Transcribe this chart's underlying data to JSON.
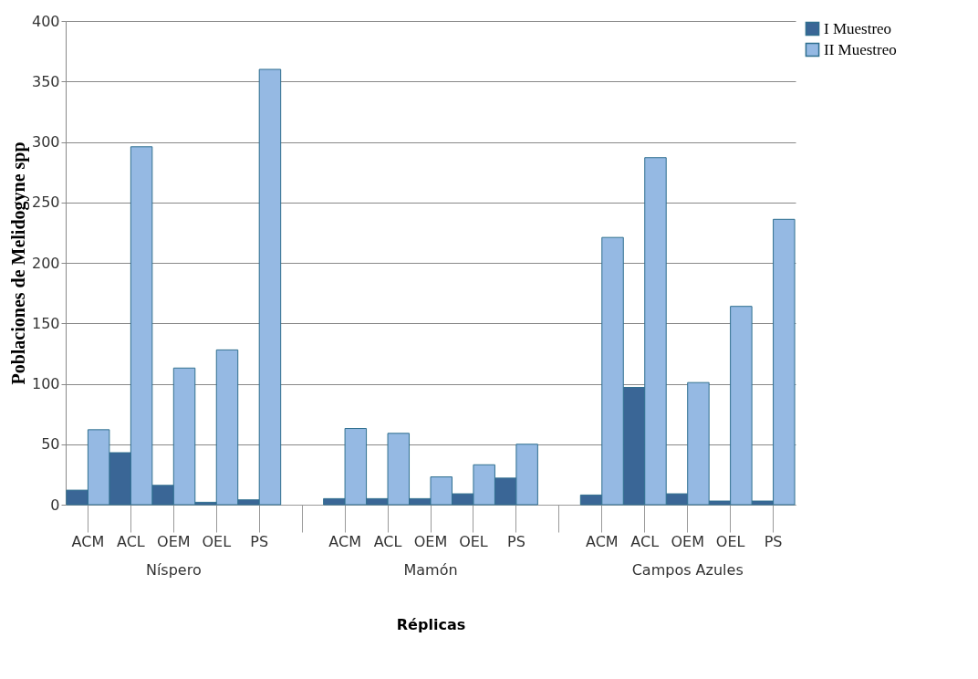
{
  "chart_data": {
    "type": "bar",
    "categories": [
      "ACM",
      "ACL",
      "OEM",
      "OEL",
      "PS",
      null,
      "ACM",
      "ACL",
      "OEM",
      "OEL",
      "PS",
      null,
      "ACM",
      "ACL",
      "OEM",
      "OEL",
      "PS"
    ],
    "xlabel": "Réplicas",
    "ylabel": "Poblaciones de Melidogyne  spp",
    "ylim": [
      0,
      400
    ],
    "yticks": [
      0,
      50,
      100,
      150,
      200,
      250,
      300,
      350,
      400
    ],
    "grid": "y",
    "legend": "right",
    "annotations": [
      "Níspero",
      "Mamón",
      "Campos Azules"
    ],
    "series": [
      {
        "name": "I Muestreo",
        "color": "#3a6696",
        "values": [
          12,
          43,
          16,
          2,
          4,
          null,
          5,
          5,
          5,
          9,
          22,
          null,
          8,
          97,
          9,
          3,
          3
        ]
      },
      {
        "name": "II Muestreo",
        "color": "#95b9e3",
        "values": [
          62,
          296,
          113,
          128,
          360,
          null,
          63,
          59,
          23,
          33,
          50,
          null,
          221,
          287,
          101,
          164,
          236
        ]
      }
    ]
  }
}
